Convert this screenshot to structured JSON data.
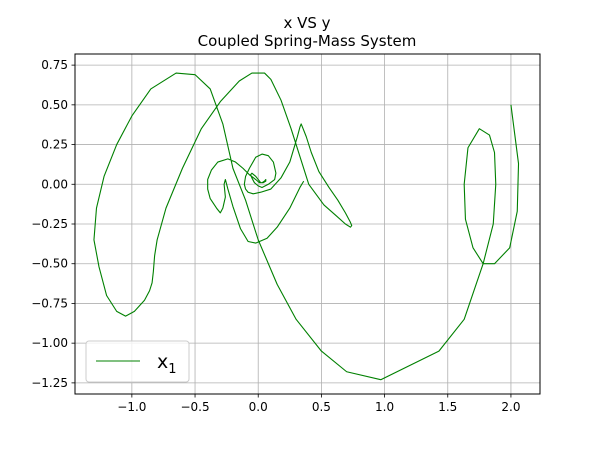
{
  "chart_data": {
    "type": "line",
    "title": "x VS y",
    "subtitle": "Coupled Spring-Mass System",
    "xlabel": "",
    "ylabel": "",
    "xlim": [
      -1.45,
      2.23
    ],
    "ylim": [
      -1.32,
      0.82
    ],
    "xticks": [
      -1.0,
      -0.5,
      0.0,
      0.5,
      1.0,
      1.5,
      2.0
    ],
    "xtick_labels": [
      "−1.0",
      "−0.5",
      "0.0",
      "0.5",
      "1.0",
      "1.5",
      "2.0"
    ],
    "yticks": [
      0.75,
      0.5,
      0.25,
      0.0,
      -0.25,
      -0.5,
      -0.75,
      -1.0,
      -1.25
    ],
    "ytick_labels": [
      "0.75",
      "0.50",
      "0.25",
      "0.00",
      "−0.25",
      "−0.50",
      "−0.75",
      "−1.00",
      "−1.25"
    ],
    "grid": true,
    "legend": {
      "position": "lower-left",
      "label_base": "x",
      "label_sub": "1"
    },
    "colors": {
      "series": "#008000",
      "grid": "#b0b0b0",
      "axes": "#000000"
    },
    "series": [
      {
        "name": "x₁",
        "x": [
          2.0,
          2.06,
          2.05,
          1.99,
          1.87,
          1.78,
          1.7,
          1.64,
          1.63,
          1.66,
          1.75,
          1.83,
          1.87,
          1.88,
          1.86,
          1.78,
          1.63,
          1.43,
          0.97,
          0.7,
          0.5,
          0.3,
          0.15,
          0.0,
          -0.1,
          -0.2,
          -0.28,
          -0.38,
          -0.5,
          -0.65,
          -0.85,
          -1.0,
          -1.12,
          -1.22,
          -1.28,
          -1.3,
          -1.26,
          -1.2,
          -1.12,
          -1.05,
          -0.98,
          -0.9,
          -0.86,
          -0.84,
          -0.83,
          -0.82,
          -0.8,
          -0.73,
          -0.6,
          -0.45,
          -0.3,
          -0.15,
          -0.05,
          0.05,
          0.1,
          0.18,
          0.26,
          0.3,
          0.4,
          0.52,
          0.62,
          0.69,
          0.73,
          0.74,
          0.73,
          0.69,
          0.63,
          0.56,
          0.48,
          0.42,
          0.38,
          0.35,
          0.34,
          0.33,
          0.31,
          0.28,
          0.25,
          0.18,
          0.1,
          0.02,
          -0.04,
          -0.08,
          -0.1,
          -0.11,
          -0.1,
          -0.07,
          -0.02,
          0.03,
          0.08,
          0.12,
          0.14,
          0.13,
          0.08,
          0.03,
          0.0,
          -0.03,
          -0.05,
          -0.06,
          -0.05,
          -0.02,
          0.02,
          0.04,
          0.06,
          0.06,
          0.05,
          0.03,
          0.01,
          -0.02,
          -0.07,
          -0.12,
          -0.18,
          -0.24,
          -0.32,
          -0.37,
          -0.4,
          -0.4,
          -0.38,
          -0.33,
          -0.3,
          -0.28,
          -0.26,
          -0.27,
          -0.26,
          -0.24,
          -0.2,
          -0.14,
          -0.08,
          -0.02,
          0.07,
          0.15,
          0.25,
          0.33,
          0.36
        ],
        "y": [
          0.5,
          0.13,
          -0.17,
          -0.4,
          -0.5,
          -0.5,
          -0.4,
          -0.22,
          0.0,
          0.23,
          0.35,
          0.31,
          0.2,
          0.0,
          -0.25,
          -0.5,
          -0.85,
          -1.05,
          -1.23,
          -1.18,
          -1.05,
          -0.85,
          -0.63,
          -0.35,
          -0.1,
          0.1,
          0.38,
          0.6,
          0.69,
          0.7,
          0.6,
          0.43,
          0.25,
          0.05,
          -0.15,
          -0.35,
          -0.52,
          -0.7,
          -0.8,
          -0.83,
          -0.8,
          -0.73,
          -0.67,
          -0.62,
          -0.55,
          -0.45,
          -0.35,
          -0.15,
          0.1,
          0.35,
          0.52,
          0.65,
          0.7,
          0.7,
          0.66,
          0.53,
          0.35,
          0.25,
          0.0,
          -0.13,
          -0.2,
          -0.25,
          -0.27,
          -0.26,
          -0.24,
          -0.18,
          -0.1,
          -0.02,
          0.08,
          0.2,
          0.3,
          0.36,
          0.38,
          0.36,
          0.3,
          0.22,
          0.14,
          0.04,
          -0.03,
          -0.05,
          -0.06,
          -0.05,
          -0.03,
          0.0,
          0.05,
          0.1,
          0.17,
          0.19,
          0.18,
          0.14,
          0.07,
          0.03,
          0.0,
          -0.02,
          -0.01,
          0.01,
          0.04,
          0.06,
          0.07,
          0.05,
          0.01,
          0.01,
          0.02,
          0.03,
          0.02,
          0.01,
          0.01,
          0.03,
          0.06,
          0.1,
          0.14,
          0.16,
          0.14,
          0.09,
          0.03,
          -0.03,
          -0.09,
          -0.15,
          -0.18,
          -0.15,
          -0.08,
          0.0,
          0.03,
          -0.03,
          -0.14,
          -0.28,
          -0.36,
          -0.37,
          -0.34,
          -0.27,
          -0.15,
          -0.02,
          0.02
        ]
      }
    ]
  }
}
